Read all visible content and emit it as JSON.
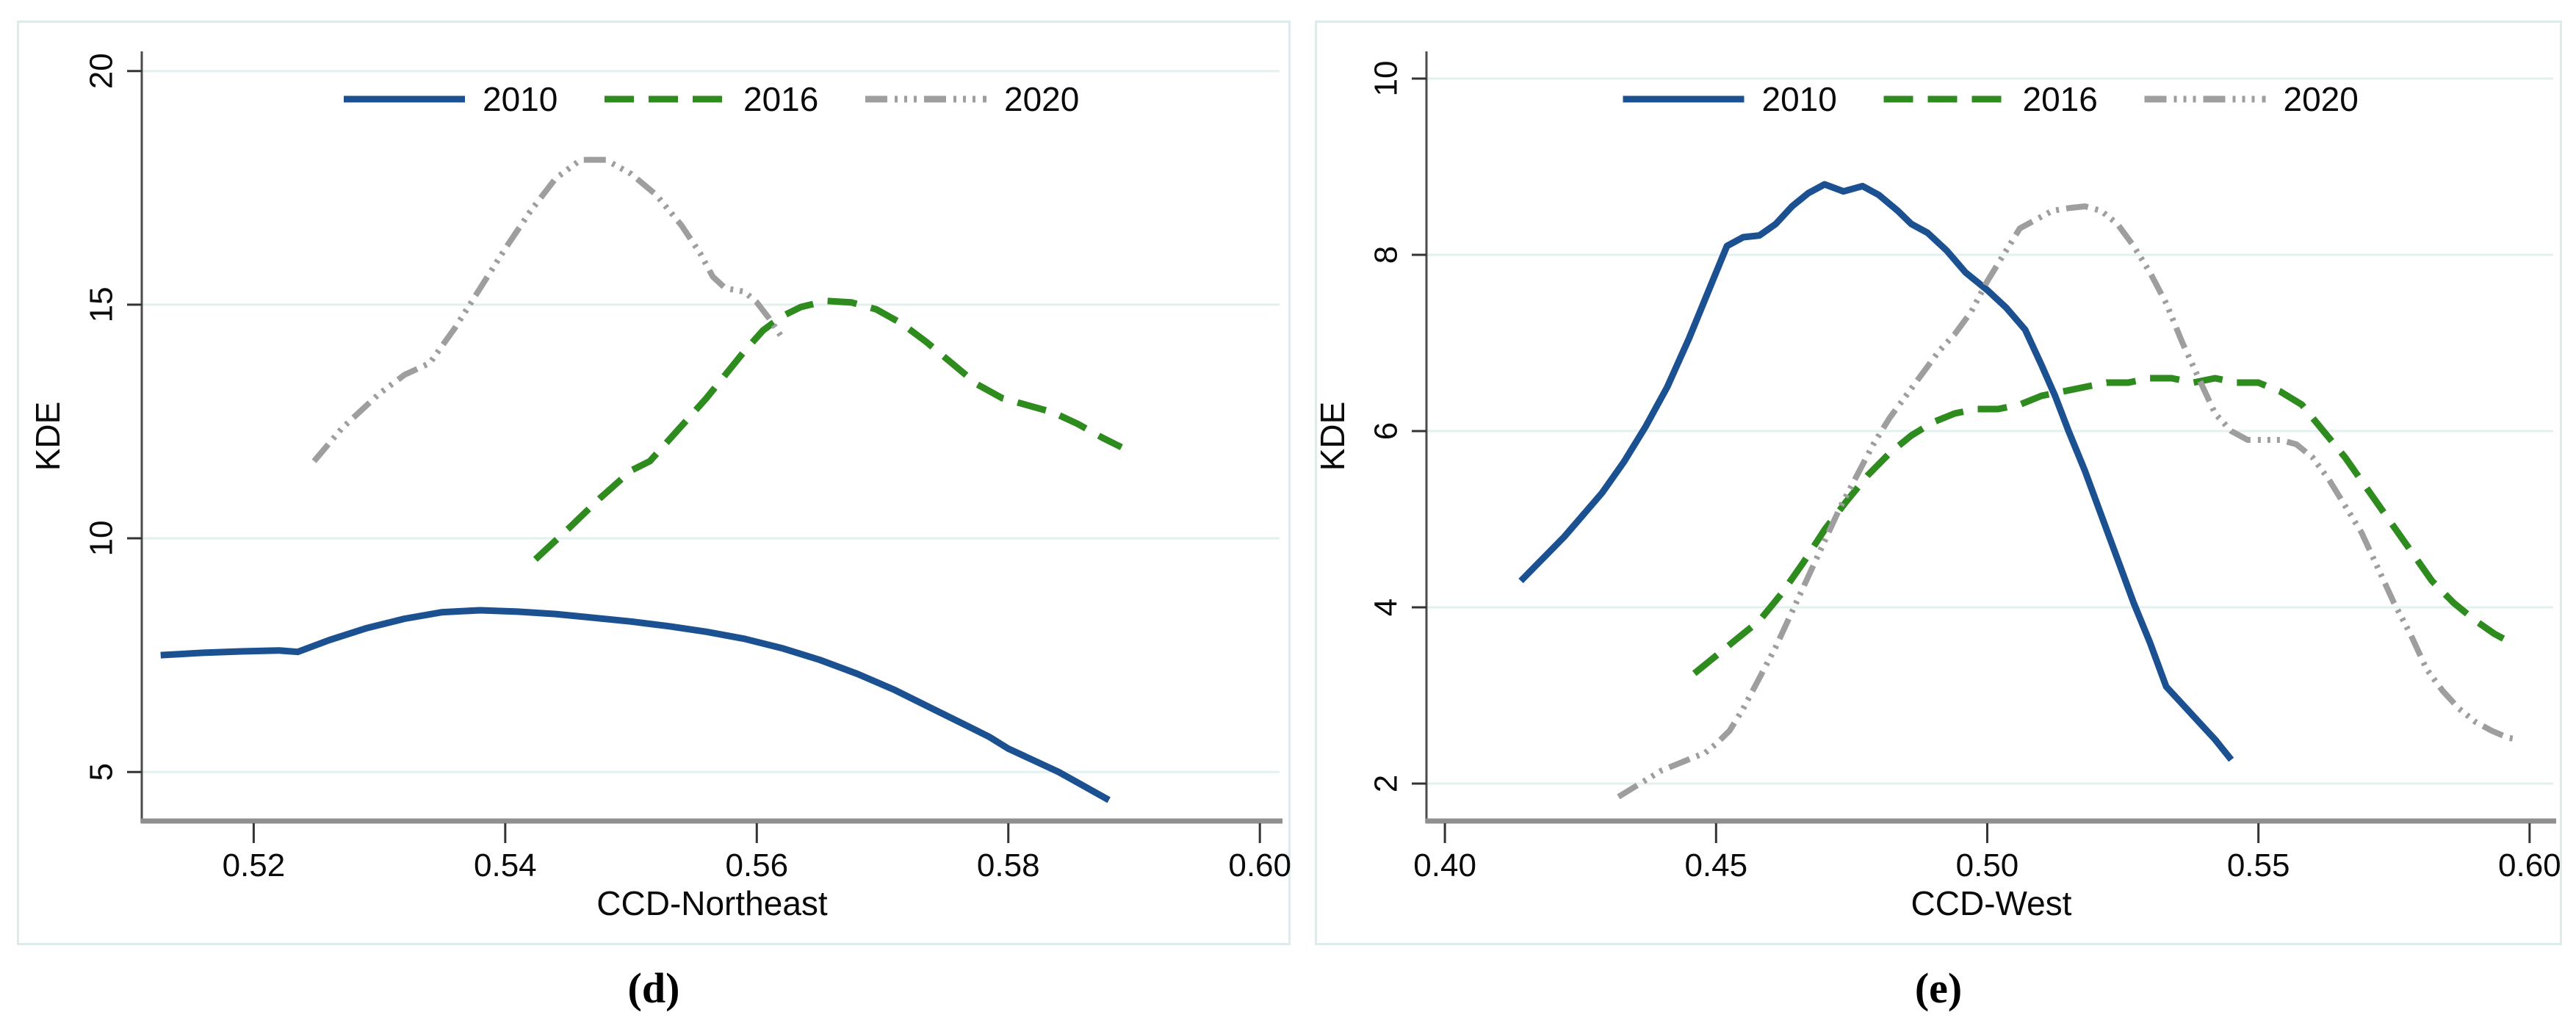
{
  "figure": {
    "captions": {
      "left": "(d)",
      "right": "(e)"
    },
    "legend_labels": [
      "2010",
      "2016",
      "2020"
    ]
  },
  "colors": {
    "series_2010": "#1b5191",
    "series_2016": "#2e8b1e",
    "series_2020": "#9e9e9e",
    "gridline": "#e2f0f0",
    "y_axis_line": "#4b4b4b",
    "x_axis_line": "#8f8f8f",
    "tick_mark": "#333333",
    "panel_border": "#dfeaeb",
    "text": "#0a0a0a"
  },
  "chart_data": [
    {
      "id": "ccd-northeast",
      "type": "line",
      "caption": "(d)",
      "xlabel": "CCD-Northeast",
      "ylabel": "KDE",
      "grid": true,
      "legend_position": "top-center",
      "xlim": [
        0.5111,
        0.6018
      ],
      "ylim": [
        3.95,
        20.42
      ],
      "xticks": [
        0.52,
        0.54,
        0.56,
        0.58,
        0.6
      ],
      "xtick_labels": [
        "0.52",
        "0.54",
        "0.56",
        "0.58",
        "0.60"
      ],
      "yticks": [
        5,
        10,
        15,
        20
      ],
      "ytick_labels": [
        "5",
        "10",
        "15",
        "20"
      ],
      "series": [
        {
          "name": "2010",
          "style": "solid",
          "color_key": "series_2010",
          "points": [
            [
              0.5126,
              7.5
            ],
            [
              0.516,
              7.55
            ],
            [
              0.519,
              7.58
            ],
            [
              0.522,
              7.6
            ],
            [
              0.5235,
              7.57
            ],
            [
              0.526,
              7.82
            ],
            [
              0.529,
              8.08
            ],
            [
              0.532,
              8.28
            ],
            [
              0.535,
              8.42
            ],
            [
              0.538,
              8.46
            ],
            [
              0.541,
              8.43
            ],
            [
              0.544,
              8.38
            ],
            [
              0.547,
              8.3
            ],
            [
              0.55,
              8.22
            ],
            [
              0.553,
              8.12
            ],
            [
              0.556,
              8.0
            ],
            [
              0.559,
              7.85
            ],
            [
              0.562,
              7.65
            ],
            [
              0.565,
              7.4
            ],
            [
              0.568,
              7.1
            ],
            [
              0.571,
              6.75
            ],
            [
              0.574,
              6.35
            ],
            [
              0.577,
              5.95
            ],
            [
              0.5785,
              5.75
            ],
            [
              0.58,
              5.5
            ],
            [
              0.582,
              5.25
            ],
            [
              0.584,
              5.0
            ],
            [
              0.586,
              4.7
            ],
            [
              0.588,
              4.4
            ]
          ]
        },
        {
          "name": "2016",
          "style": "dashed",
          "color_key": "series_2016",
          "points": [
            [
              0.5424,
              9.55
            ],
            [
              0.545,
              10.2
            ],
            [
              0.5475,
              10.85
            ],
            [
              0.55,
              11.45
            ],
            [
              0.5515,
              11.65
            ],
            [
              0.553,
              12.1
            ],
            [
              0.5545,
              12.55
            ],
            [
              0.556,
              13.0
            ],
            [
              0.5575,
              13.5
            ],
            [
              0.559,
              14.0
            ],
            [
              0.5605,
              14.45
            ],
            [
              0.562,
              14.75
            ],
            [
              0.5635,
              14.95
            ],
            [
              0.5655,
              15.08
            ],
            [
              0.5675,
              15.05
            ],
            [
              0.5695,
              14.9
            ],
            [
              0.5715,
              14.6
            ],
            [
              0.5735,
              14.2
            ],
            [
              0.5755,
              13.75
            ],
            [
              0.5775,
              13.3
            ],
            [
              0.5795,
              13.0
            ],
            [
              0.5815,
              12.85
            ],
            [
              0.5835,
              12.7
            ],
            [
              0.5855,
              12.45
            ],
            [
              0.5875,
              12.15
            ],
            [
              0.589,
              11.95
            ]
          ]
        },
        {
          "name": "2020",
          "style": "dash-dot",
          "color_key": "series_2020",
          "points": [
            [
              0.5248,
              11.65
            ],
            [
              0.527,
              12.35
            ],
            [
              0.53,
              13.1
            ],
            [
              0.532,
              13.5
            ],
            [
              0.534,
              13.75
            ],
            [
              0.536,
              14.5
            ],
            [
              0.538,
              15.35
            ],
            [
              0.54,
              16.2
            ],
            [
              0.542,
              17.0
            ],
            [
              0.544,
              17.7
            ],
            [
              0.546,
              18.1
            ],
            [
              0.548,
              18.1
            ],
            [
              0.55,
              17.8
            ],
            [
              0.552,
              17.35
            ],
            [
              0.554,
              16.7
            ],
            [
              0.5555,
              16.1
            ],
            [
              0.5565,
              15.6
            ],
            [
              0.5575,
              15.35
            ],
            [
              0.559,
              15.28
            ],
            [
              0.56,
              15.05
            ],
            [
              0.561,
              14.7
            ],
            [
              0.562,
              14.3
            ]
          ]
        }
      ]
    },
    {
      "id": "ccd-west",
      "type": "line",
      "caption": "(e)",
      "xlabel": "CCD-West",
      "ylabel": "KDE",
      "grid": true,
      "legend_position": "top-center",
      "xlim": [
        0.3966,
        0.6049
      ],
      "ylim": [
        1.575,
        10.308
      ],
      "xticks": [
        0.4,
        0.45,
        0.5,
        0.55,
        0.6
      ],
      "xtick_labels": [
        "0.40",
        "0.45",
        "0.50",
        "0.55",
        "0.60"
      ],
      "yticks": [
        2,
        4,
        6,
        8,
        10
      ],
      "ytick_labels": [
        "2",
        "4",
        "6",
        "8",
        "10"
      ],
      "series": [
        {
          "name": "2010",
          "style": "solid",
          "color_key": "series_2010",
          "points": [
            [
              0.414,
              4.3
            ],
            [
              0.418,
              4.55
            ],
            [
              0.422,
              4.8
            ],
            [
              0.4255,
              5.05
            ],
            [
              0.429,
              5.3
            ],
            [
              0.433,
              5.65
            ],
            [
              0.437,
              6.05
            ],
            [
              0.441,
              6.5
            ],
            [
              0.445,
              7.05
            ],
            [
              0.449,
              7.65
            ],
            [
              0.452,
              8.1
            ],
            [
              0.455,
              8.2
            ],
            [
              0.458,
              8.22
            ],
            [
              0.461,
              8.35
            ],
            [
              0.464,
              8.55
            ],
            [
              0.467,
              8.7
            ],
            [
              0.47,
              8.8
            ],
            [
              0.4735,
              8.72
            ],
            [
              0.477,
              8.78
            ],
            [
              0.48,
              8.68
            ],
            [
              0.4835,
              8.5
            ],
            [
              0.486,
              8.35
            ],
            [
              0.489,
              8.25
            ],
            [
              0.4925,
              8.05
            ],
            [
              0.496,
              7.8
            ],
            [
              0.5,
              7.6
            ],
            [
              0.5035,
              7.4
            ],
            [
              0.507,
              7.15
            ],
            [
              0.51,
              6.75
            ],
            [
              0.5125,
              6.4
            ],
            [
              0.515,
              6.0
            ],
            [
              0.518,
              5.55
            ],
            [
              0.521,
              5.05
            ],
            [
              0.524,
              4.55
            ],
            [
              0.527,
              4.05
            ],
            [
              0.53,
              3.6
            ],
            [
              0.533,
              3.1
            ],
            [
              0.536,
              2.9
            ],
            [
              0.539,
              2.7
            ],
            [
              0.542,
              2.5
            ],
            [
              0.545,
              2.27
            ]
          ]
        },
        {
          "name": "2016",
          "style": "dashed",
          "color_key": "series_2016",
          "points": [
            [
              0.446,
              3.25
            ],
            [
              0.45,
              3.45
            ],
            [
              0.454,
              3.65
            ],
            [
              0.458,
              3.85
            ],
            [
              0.462,
              4.15
            ],
            [
              0.466,
              4.5
            ],
            [
              0.47,
              4.88
            ],
            [
              0.474,
              5.2
            ],
            [
              0.478,
              5.5
            ],
            [
              0.482,
              5.75
            ],
            [
              0.486,
              5.95
            ],
            [
              0.49,
              6.1
            ],
            [
              0.494,
              6.2
            ],
            [
              0.498,
              6.25
            ],
            [
              0.502,
              6.25
            ],
            [
              0.506,
              6.3
            ],
            [
              0.51,
              6.4
            ],
            [
              0.514,
              6.45
            ],
            [
              0.518,
              6.5
            ],
            [
              0.522,
              6.55
            ],
            [
              0.526,
              6.55
            ],
            [
              0.53,
              6.6
            ],
            [
              0.534,
              6.6
            ],
            [
              0.538,
              6.55
            ],
            [
              0.542,
              6.6
            ],
            [
              0.546,
              6.55
            ],
            [
              0.55,
              6.55
            ],
            [
              0.554,
              6.45
            ],
            [
              0.558,
              6.3
            ],
            [
              0.562,
              6.0
            ],
            [
              0.566,
              5.7
            ],
            [
              0.57,
              5.35
            ],
            [
              0.574,
              5.0
            ],
            [
              0.578,
              4.65
            ],
            [
              0.582,
              4.3
            ],
            [
              0.586,
              4.05
            ],
            [
              0.59,
              3.85
            ],
            [
              0.5935,
              3.7
            ],
            [
              0.5965,
              3.6
            ]
          ]
        },
        {
          "name": "2020",
          "style": "dash-dot",
          "color_key": "series_2020",
          "points": [
            [
              0.432,
              1.85
            ],
            [
              0.436,
              2.0
            ],
            [
              0.44,
              2.15
            ],
            [
              0.444,
              2.25
            ],
            [
              0.448,
              2.35
            ],
            [
              0.45,
              2.45
            ],
            [
              0.4525,
              2.6
            ],
            [
              0.455,
              2.85
            ],
            [
              0.458,
              3.2
            ],
            [
              0.461,
              3.55
            ],
            [
              0.464,
              3.95
            ],
            [
              0.467,
              4.35
            ],
            [
              0.47,
              4.75
            ],
            [
              0.473,
              5.15
            ],
            [
              0.476,
              5.5
            ],
            [
              0.479,
              5.85
            ],
            [
              0.482,
              6.15
            ],
            [
              0.485,
              6.4
            ],
            [
              0.488,
              6.65
            ],
            [
              0.491,
              6.9
            ],
            [
              0.494,
              7.1
            ],
            [
              0.497,
              7.35
            ],
            [
              0.5,
              7.7
            ],
            [
              0.503,
              8.0
            ],
            [
              0.506,
              8.3
            ],
            [
              0.509,
              8.4
            ],
            [
              0.512,
              8.5
            ],
            [
              0.515,
              8.53
            ],
            [
              0.518,
              8.55
            ],
            [
              0.521,
              8.5
            ],
            [
              0.524,
              8.35
            ],
            [
              0.527,
              8.1
            ],
            [
              0.53,
              7.8
            ],
            [
              0.533,
              7.45
            ],
            [
              0.536,
              7.0
            ],
            [
              0.539,
              6.6
            ],
            [
              0.542,
              6.2
            ],
            [
              0.545,
              6.0
            ],
            [
              0.548,
              5.9
            ],
            [
              0.551,
              5.9
            ],
            [
              0.554,
              5.9
            ],
            [
              0.557,
              5.85
            ],
            [
              0.56,
              5.7
            ],
            [
              0.563,
              5.45
            ],
            [
              0.566,
              5.15
            ],
            [
              0.569,
              4.85
            ],
            [
              0.572,
              4.45
            ],
            [
              0.575,
              4.05
            ],
            [
              0.578,
              3.7
            ],
            [
              0.581,
              3.3
            ],
            [
              0.584,
              3.05
            ],
            [
              0.587,
              2.85
            ],
            [
              0.59,
              2.7
            ],
            [
              0.593,
              2.6
            ],
            [
              0.596,
              2.52
            ],
            [
              0.598,
              2.5
            ]
          ]
        }
      ]
    }
  ]
}
